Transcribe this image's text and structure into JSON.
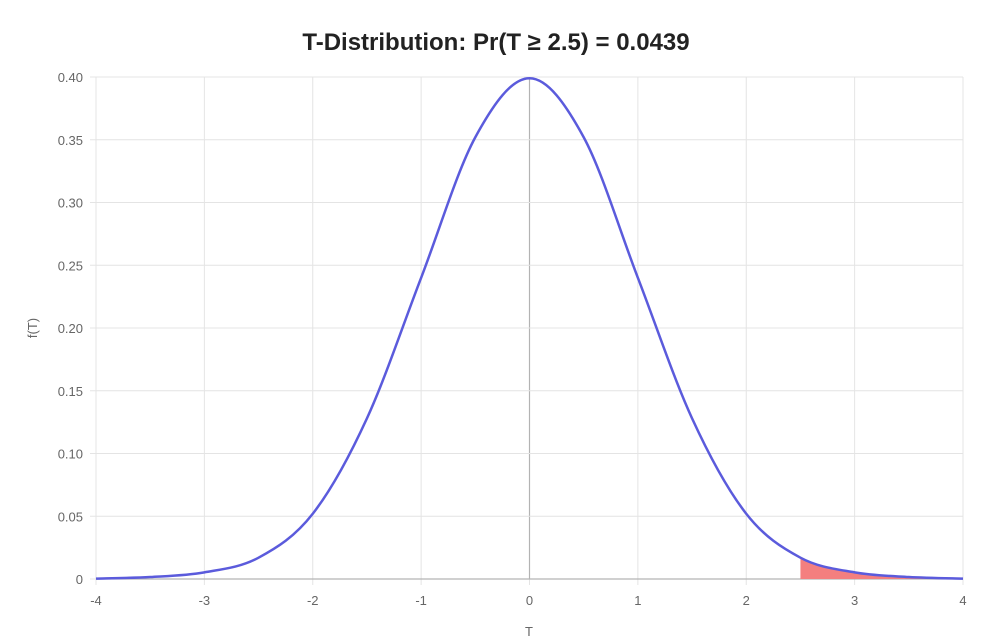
{
  "chart_data": {
    "type": "area",
    "title": "T-Distribution: Pr(T ≥ 2.5) = 0.0439",
    "xlabel": "T",
    "ylabel": "f(T)",
    "xlim": [
      -4,
      4
    ],
    "ylim": [
      0,
      0.4
    ],
    "x_ticks": [
      "-4",
      "-3",
      "-2",
      "-1",
      "0",
      "1",
      "2",
      "3",
      "4"
    ],
    "y_ticks": [
      "0",
      "0.05",
      "0.10",
      "0.15",
      "0.20",
      "0.25",
      "0.30",
      "0.35",
      "0.40"
    ],
    "grid": true,
    "series": [
      {
        "x": [
          -4,
          -3.5,
          -3,
          -2.5,
          -2,
          -1.5,
          -1,
          -0.5,
          0,
          0.5,
          1,
          1.5,
          2,
          2.5,
          3,
          3.5,
          4
        ],
        "y": [
          0.0003,
          0.0016,
          0.0053,
          0.017,
          0.052,
          0.128,
          0.24,
          0.352,
          0.399,
          0.352,
          0.24,
          0.128,
          0.052,
          0.017,
          0.0053,
          0.0016,
          0.0003
        ]
      }
    ],
    "shaded_region": {
      "from": 2.5,
      "to": 4
    },
    "colors": {
      "curve": "#5b5bdc",
      "shade": "#f47f7f"
    }
  }
}
